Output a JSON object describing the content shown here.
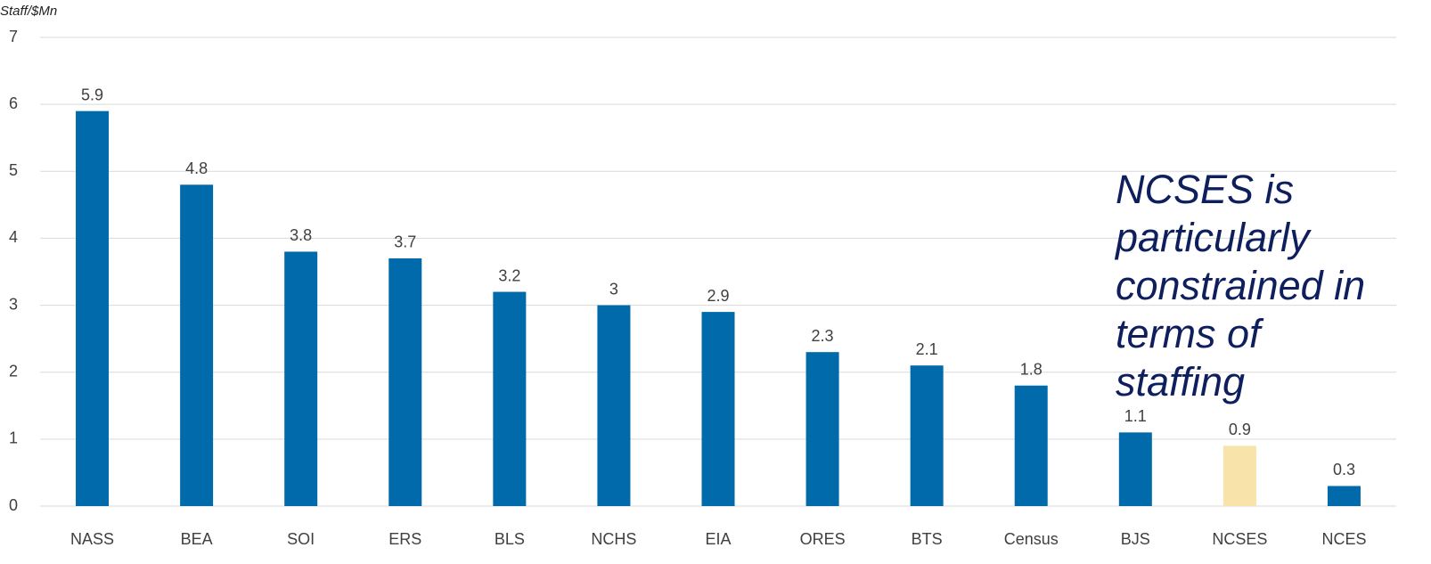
{
  "chart_data": {
    "type": "bar",
    "y_label": "Staff/$Mn",
    "categories": [
      "NASS",
      "BEA",
      "SOI",
      "ERS",
      "BLS",
      "NCHS",
      "EIA",
      "ORES",
      "BTS",
      "Census",
      "BJS",
      "NCSES",
      "NCES"
    ],
    "values": [
      5.9,
      4.8,
      3.8,
      3.7,
      3.2,
      3,
      2.9,
      2.3,
      2.1,
      1.8,
      1.1,
      0.9,
      0.3
    ],
    "colors": [
      "#006aab",
      "#006aab",
      "#006aab",
      "#006aab",
      "#006aab",
      "#006aab",
      "#006aab",
      "#006aab",
      "#006aab",
      "#006aab",
      "#006aab",
      "#f8e4ab",
      "#006aab"
    ],
    "ylim": [
      0,
      7
    ],
    "yticks": [
      0,
      1,
      2,
      3,
      4,
      5,
      6,
      7
    ],
    "grid": true,
    "annotation": "NCSES is particularly constrained in terms of staffing"
  }
}
